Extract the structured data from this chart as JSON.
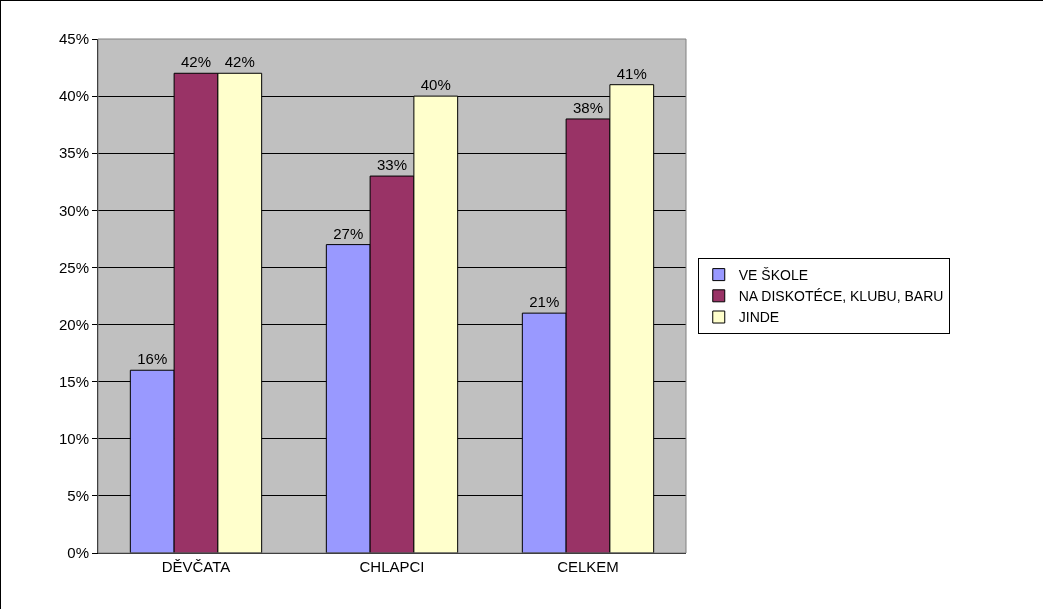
{
  "chart_data": {
    "type": "bar",
    "categories": [
      "DĚVČATA",
      "CHLAPCI",
      "CELKEM"
    ],
    "series": [
      {
        "name": "VE ŠKOLE",
        "color": "#9999ff",
        "values": [
          16,
          27,
          21
        ],
        "value_labels": [
          "16%",
          "27%",
          "21%"
        ]
      },
      {
        "name": "NA DISKOTÉCE, KLUBU, BARU",
        "color": "#993366",
        "values": [
          42,
          33,
          38
        ],
        "value_labels": [
          "42%",
          "33%",
          "38%"
        ]
      },
      {
        "name": "JINDE",
        "color": "#ffffcc",
        "values": [
          42,
          40,
          41
        ],
        "value_labels": [
          "42%",
          "40%",
          "41%"
        ]
      }
    ],
    "ylim": [
      0,
      45
    ],
    "yticks": [
      {
        "value": 0,
        "label": "0%"
      },
      {
        "value": 5,
        "label": "5%"
      },
      {
        "value": 10,
        "label": "10%"
      },
      {
        "value": 15,
        "label": "15%"
      },
      {
        "value": 20,
        "label": "20%"
      },
      {
        "value": 25,
        "label": "25%"
      },
      {
        "value": 30,
        "label": "30%"
      },
      {
        "value": 35,
        "label": "35%"
      },
      {
        "value": 40,
        "label": "40%"
      },
      {
        "value": 45,
        "label": "45%"
      }
    ],
    "grid": "y",
    "legend": "right"
  }
}
